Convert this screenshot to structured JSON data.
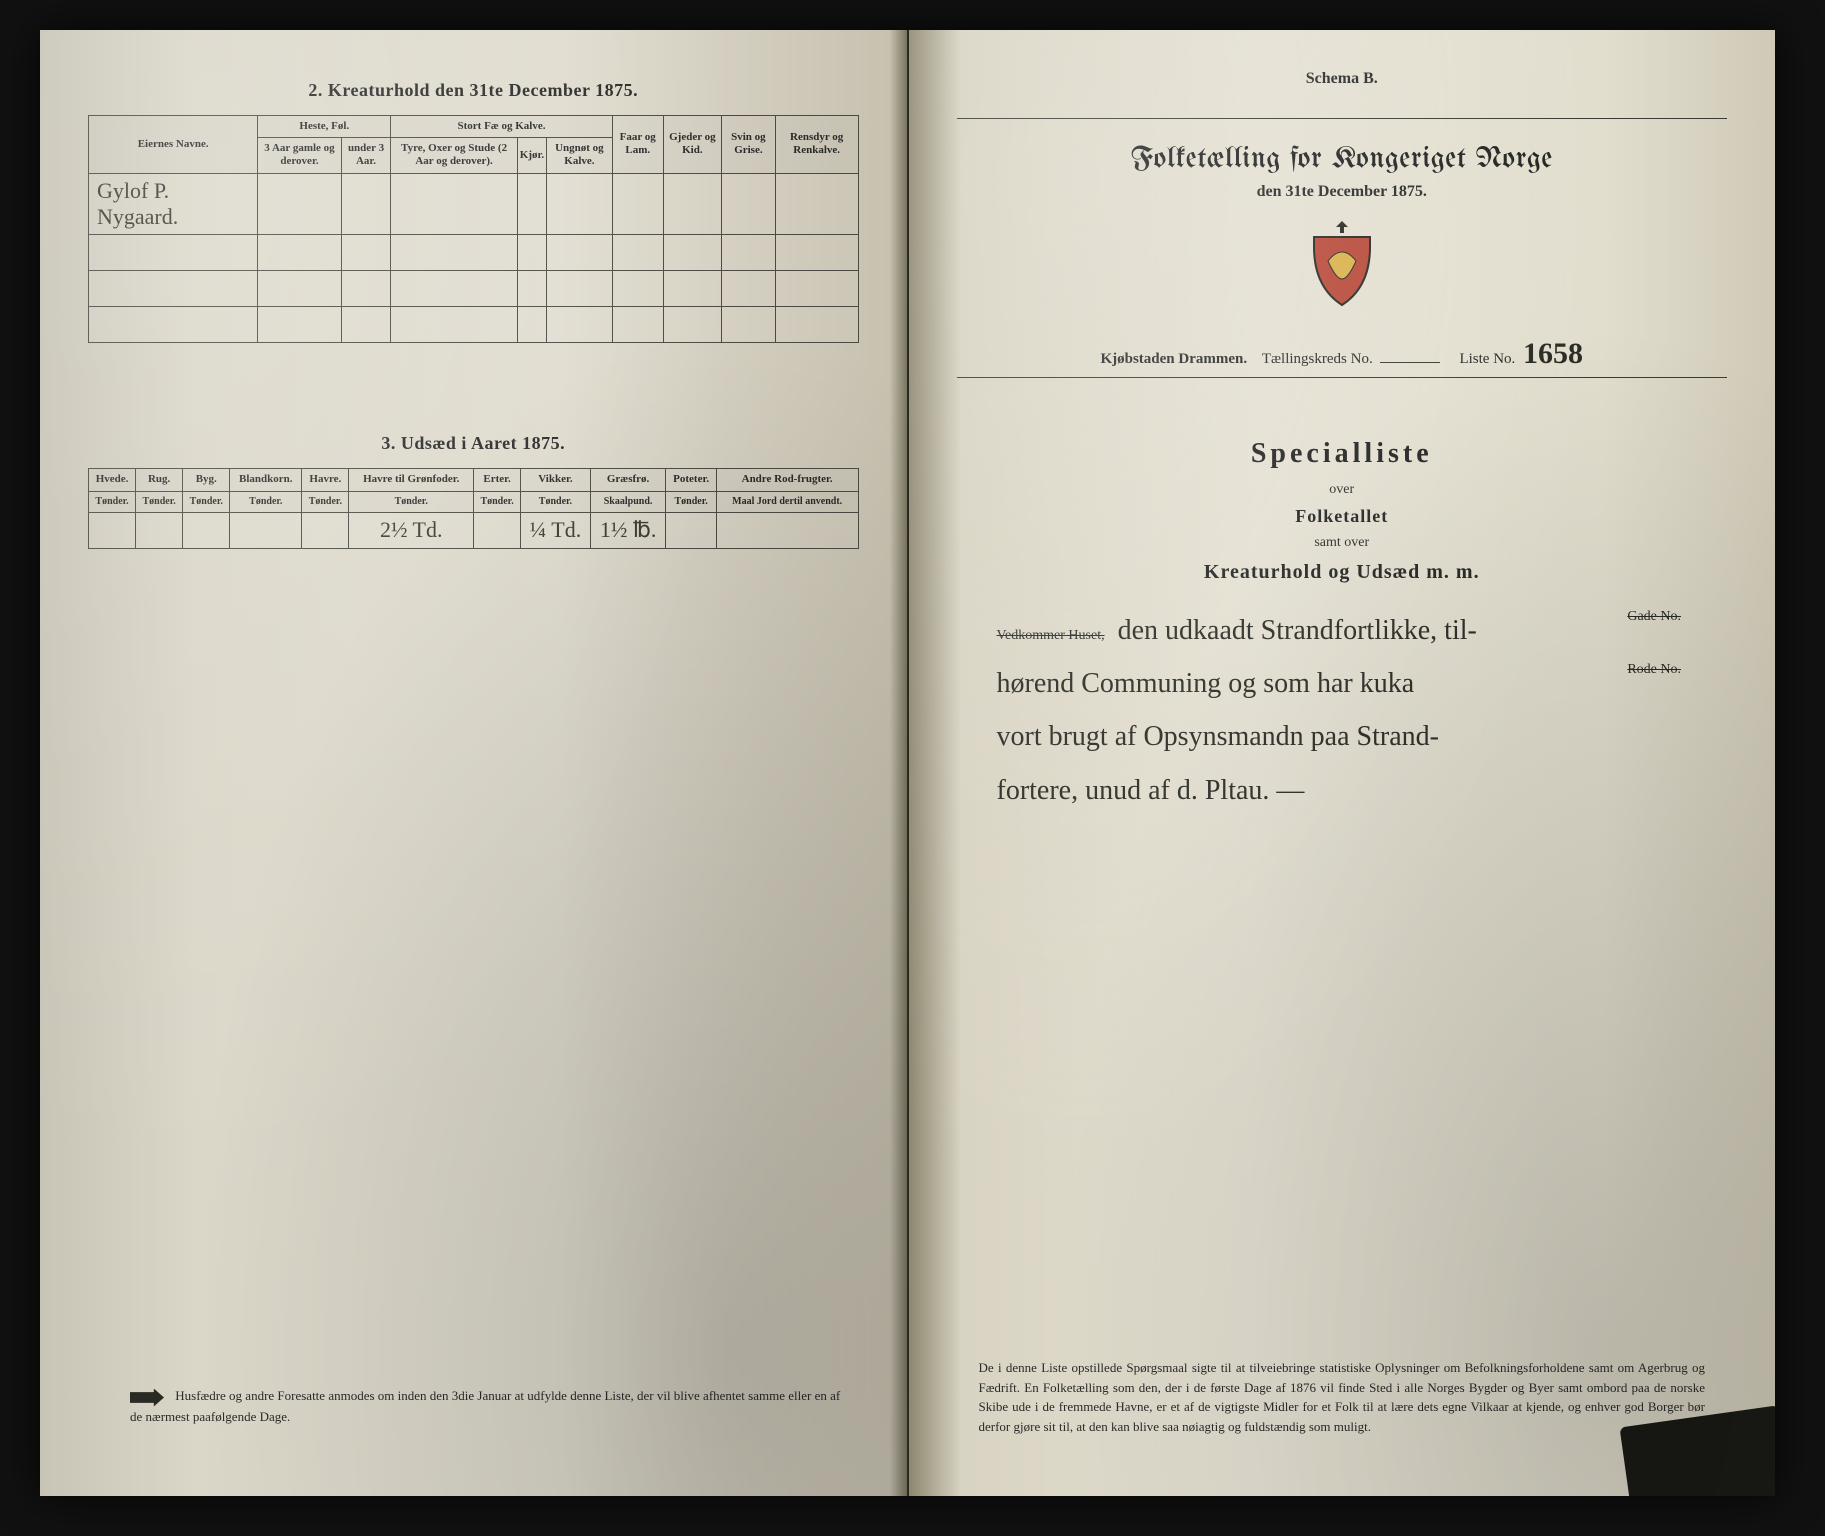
{
  "leftPage": {
    "section2": {
      "title": "2.  Kreaturhold den 31te December 1875.",
      "ownerHeader": "Eiernes Navne.",
      "groups": [
        {
          "label": "Heste, Føl.",
          "sub": [
            "3 Aar gamle og derover.",
            "under 3 Aar."
          ]
        },
        {
          "label": "Stort Fæ og Kalve.",
          "sub": [
            "Tyre, Oxer og Stude (2 Aar og derover).",
            "Kjør.",
            "Ungnøt og Kalve."
          ]
        },
        {
          "label": "Faar og Lam.",
          "sub": []
        },
        {
          "label": "Gjeder og Kid.",
          "sub": []
        },
        {
          "label": "Svin og Grise.",
          "sub": []
        },
        {
          "label": "Rensdyr og Renkalve.",
          "sub": []
        }
      ],
      "ownerName": "Gylof P. Nygaard."
    },
    "section3": {
      "title": "3.  Udsæd i Aaret 1875.",
      "columns": [
        {
          "top": "Hvede.",
          "unit": "Tønder."
        },
        {
          "top": "Rug.",
          "unit": "Tønder."
        },
        {
          "top": "Byg.",
          "unit": "Tønder."
        },
        {
          "top": "Blandkorn.",
          "unit": "Tønder."
        },
        {
          "top": "Havre.",
          "unit": "Tønder."
        },
        {
          "top": "Havre til Grønfoder.",
          "unit": "Tønder."
        },
        {
          "top": "Erter.",
          "unit": "Tønder."
        },
        {
          "top": "Vikker.",
          "unit": "Tønder."
        },
        {
          "top": "Græsfrø.",
          "unit": "Skaalpund."
        },
        {
          "top": "Poteter.",
          "unit": "Tønder."
        },
        {
          "top": "Andre Rod-frugter.",
          "unit": "Maal Jord dertil anvendt."
        }
      ],
      "values": [
        "",
        "",
        "",
        "",
        "",
        "2½ Td.",
        "",
        "¼ Td.",
        "1½ ℔.",
        "",
        ""
      ]
    },
    "footnote": "Husfædre og andre Foresatte anmodes om inden den 3die Januar at udfylde denne Liste, der vil blive afhentet samme eller en af de nærmest paafølgende Dage."
  },
  "rightPage": {
    "schema": "Schema B.",
    "mainTitle": "Folketælling for Kongeriget Norge",
    "subDate": "den 31te December 1875.",
    "meta": {
      "city": "Kjøbstaden Drammen.",
      "kredsLabel": "Tællingskreds No.",
      "kredsValue": "",
      "listeLabel": "Liste No.",
      "listeValue": "1658"
    },
    "special": {
      "heading": "Specialliste",
      "over1": "over",
      "line1": "Folketallet",
      "over2": "samt over",
      "line2": "Kreaturhold og Udsæd m. m."
    },
    "vedkommer": {
      "labelHuset": "Vedkommer Huset,",
      "labelGade": "Gade No.",
      "labelRode": "Rode No.",
      "hand1": "den udkaadt Strandfortlikke, til-",
      "hand2": "hørend Communing og som har kuka",
      "hand3": "vort brugt af Opsynsmandn paa Strand-",
      "hand4": "fortere,  unud af d. Pltau. —"
    },
    "footnote": "De i denne Liste opstillede Spørgsmaal sigte til at tilveiebringe statistiske Oplysninger om Befolkningsforholdene samt om Agerbrug og Fædrift.  En Folketælling som den, der i de første Dage af 1876 vil finde Sted i alle Norges Bygder og Byer samt ombord paa de norske Skibe ude i de fremmede Havne, er et af de vigtigste Midler for et Folk til at lære dets egne Vilkaar at kjende, og enhver god Borger bør derfor gjøre sit til, at den kan blive saa nøiagtig og fuldstændig som muligt."
  },
  "colors": {
    "ink": "#2a2a2a",
    "handInk": "#2a2a24",
    "paperLeft": "#e0dccf",
    "paperRight": "#e4e0d2",
    "border": "#4a4a42"
  }
}
